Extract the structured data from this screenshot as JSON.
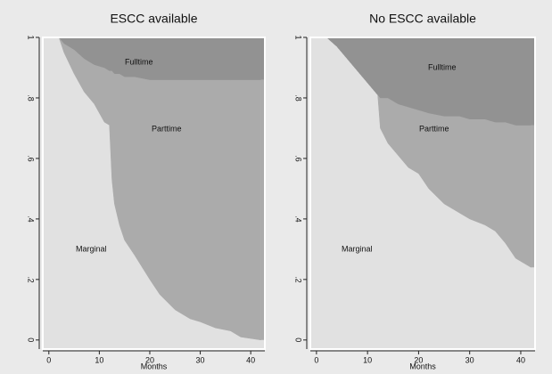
{
  "chart_data": [
    {
      "type": "area",
      "title": "ESCC available",
      "xlabel": "Months",
      "x": [
        2,
        3,
        5,
        7,
        9,
        11,
        12,
        12.5,
        13,
        14,
        15,
        17,
        20,
        22,
        25,
        28,
        30,
        33,
        36,
        38,
        42
      ],
      "series": [
        {
          "name": "Marginal",
          "color": "#e1e1e1",
          "values": [
            1.0,
            0.95,
            0.88,
            0.82,
            0.78,
            0.72,
            0.71,
            0.53,
            0.45,
            0.38,
            0.33,
            0.28,
            0.2,
            0.15,
            0.1,
            0.07,
            0.06,
            0.04,
            0.03,
            0.01,
            0.0
          ]
        },
        {
          "name": "Parttime",
          "color": "#ababab",
          "values": [
            0,
            0.03,
            0.08,
            0.11,
            0.13,
            0.18,
            0.18,
            0.36,
            0.43,
            0.5,
            0.54,
            0.59,
            0.66,
            0.71,
            0.76,
            0.79,
            0.8,
            0.82,
            0.83,
            0.85,
            0.86
          ]
        },
        {
          "name": "Fulltime",
          "color": "#929292",
          "values": [
            0,
            0.02,
            0.04,
            0.07,
            0.09,
            0.1,
            0.11,
            0.11,
            0.12,
            0.12,
            0.13,
            0.13,
            0.14,
            0.14,
            0.14,
            0.14,
            0.14,
            0.14,
            0.14,
            0.14,
            0.14
          ]
        }
      ],
      "xlim": [
        -1.2,
        42.8
      ],
      "ylim": [
        -0.03,
        1.0
      ],
      "xticks": [
        0,
        10,
        20,
        30,
        40
      ],
      "yticks": [
        0,
        {
          "value": 0.2,
          "label": ".2"
        },
        {
          "value": 0.4,
          "label": ".4"
        },
        {
          "value": 0.6,
          "label": ".6"
        },
        {
          "value": 0.8,
          "label": ".8"
        },
        1
      ]
    },
    {
      "type": "area",
      "title": "No ESCC available",
      "xlabel": "Months",
      "x": [
        2,
        4,
        6,
        8,
        10,
        12,
        12.5,
        14,
        16,
        18,
        20,
        22,
        25,
        28,
        30,
        33,
        35,
        37,
        39,
        42
      ],
      "series": [
        {
          "name": "Marginal",
          "color": "#e1e1e1",
          "values": [
            1.0,
            0.97,
            0.93,
            0.89,
            0.85,
            0.81,
            0.7,
            0.65,
            0.61,
            0.57,
            0.55,
            0.5,
            0.45,
            0.42,
            0.4,
            0.38,
            0.36,
            0.32,
            0.27,
            0.24
          ]
        },
        {
          "name": "Parttime",
          "color": "#ababab",
          "values": [
            0,
            0,
            0,
            0,
            0,
            0,
            0.1,
            0.15,
            0.17,
            0.2,
            0.21,
            0.25,
            0.29,
            0.32,
            0.33,
            0.35,
            0.36,
            0.4,
            0.44,
            0.47
          ]
        },
        {
          "name": "Fulltime",
          "color": "#929292",
          "values": [
            0,
            0.03,
            0.07,
            0.11,
            0.15,
            0.19,
            0.2,
            0.2,
            0.22,
            0.23,
            0.24,
            0.25,
            0.26,
            0.26,
            0.27,
            0.27,
            0.28,
            0.28,
            0.29,
            0.29
          ]
        }
      ],
      "xlim": [
        -1.2,
        42.8
      ],
      "ylim": [
        -0.03,
        1.0
      ],
      "xticks": [
        0,
        10,
        20,
        30,
        40
      ],
      "yticks": [
        0,
        {
          "value": 0.2,
          "label": ".2"
        },
        {
          "value": 0.4,
          "label": ".4"
        },
        {
          "value": 0.6,
          "label": ".6"
        },
        {
          "value": 0.8,
          "label": ".8"
        },
        1
      ]
    }
  ]
}
